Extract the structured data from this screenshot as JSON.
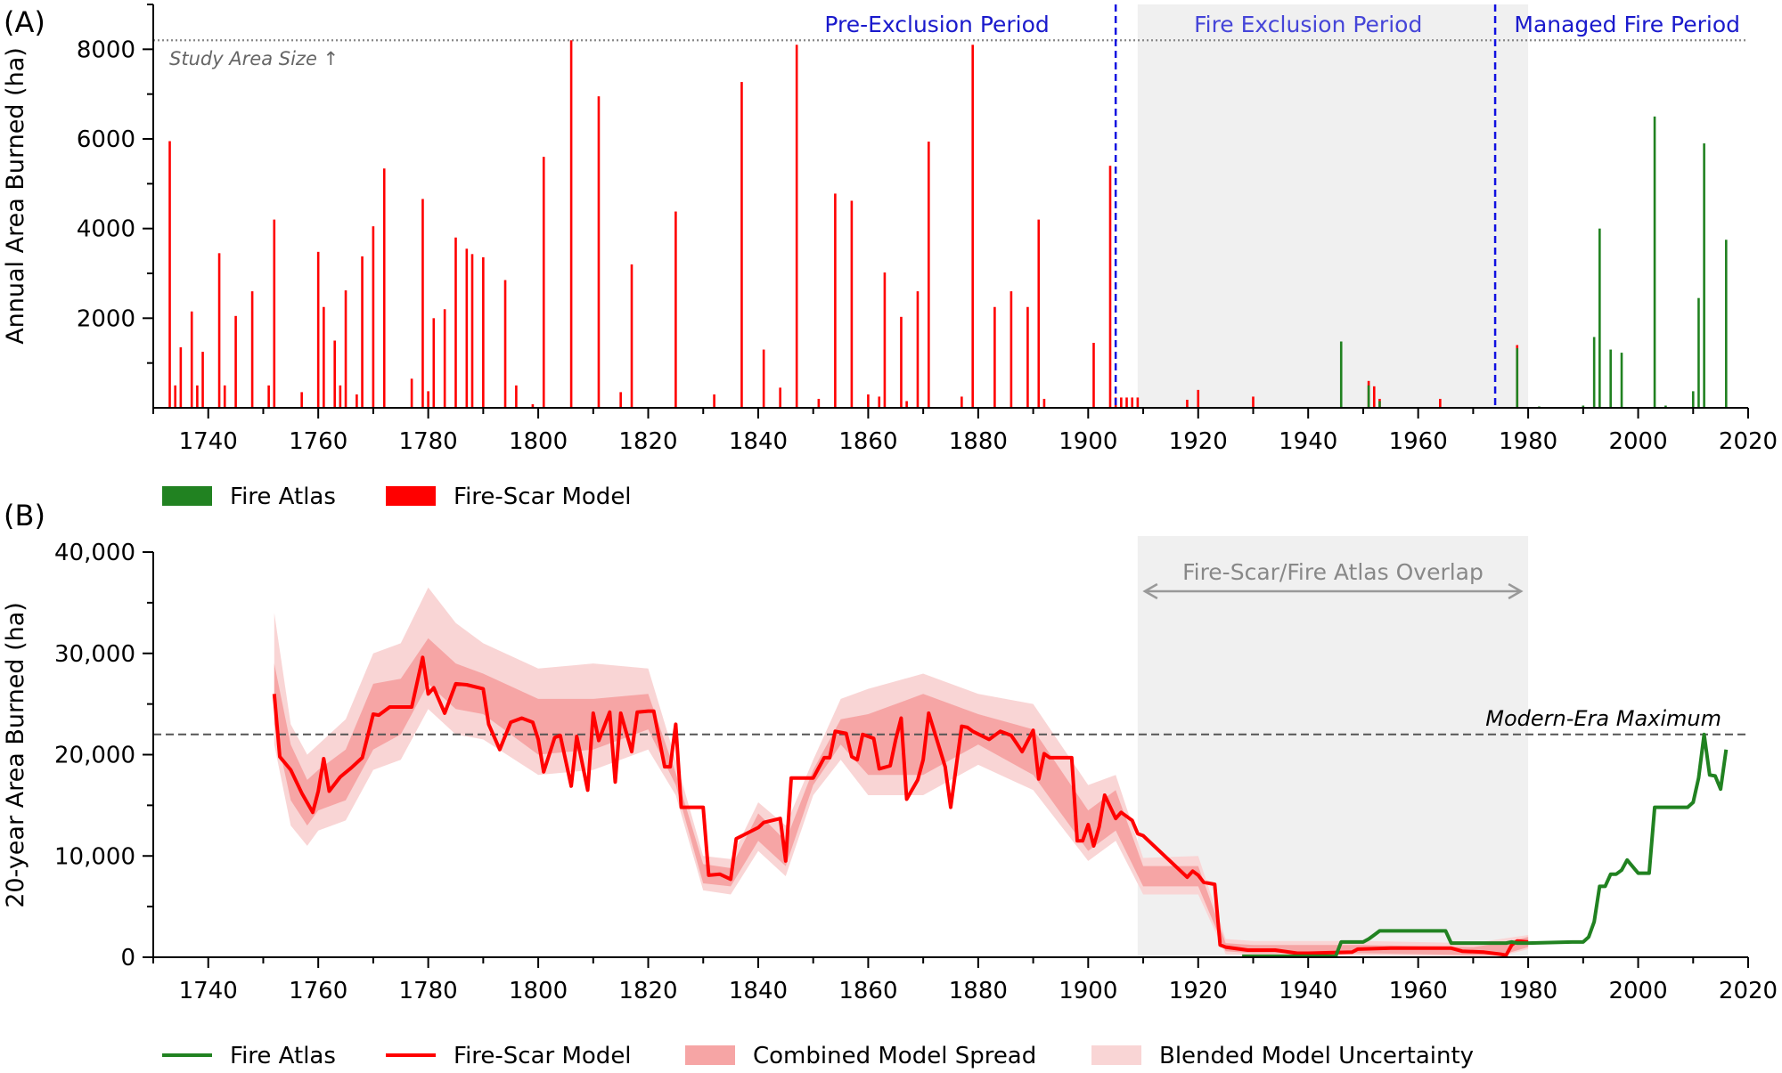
{
  "panels": {
    "a": {
      "label": "(A)",
      "ylabel": "Annual Area Burned (ha)",
      "yticks": [
        2000,
        4000,
        6000,
        8000
      ],
      "xticks": [
        1740,
        1760,
        1780,
        1800,
        1820,
        1840,
        1860,
        1880,
        1900,
        1920,
        1940,
        1960,
        1980,
        2000,
        2020
      ],
      "periods": [
        "Pre-Exclusion Period",
        "Fire Exclusion Period",
        "Managed Fire Period"
      ],
      "study_area_label": "Study Area Size ↑",
      "legend": [
        "Fire Atlas",
        "Fire-Scar Model"
      ]
    },
    "b": {
      "label": "(B)",
      "ylabel": "20-year Area Burned (ha)",
      "ytick_labels": [
        "0",
        "10,000",
        "20,000",
        "30,000",
        "40,000"
      ],
      "xticks": [
        1740,
        1760,
        1780,
        1800,
        1820,
        1840,
        1860,
        1880,
        1900,
        1920,
        1940,
        1960,
        1980,
        2000,
        2020
      ],
      "overlap_label": "Fire-Scar/Fire Atlas Overlap",
      "max_label": "Modern-Era Maximum",
      "legend": [
        "Fire Atlas",
        "Fire-Scar Model",
        "Combined Model Spread",
        "Blended Model Uncertainty"
      ]
    }
  },
  "colors": {
    "atlas": "#218221",
    "model": "#ff0000",
    "spread": "#f6a5a5",
    "uncertainty": "#f9d5d5",
    "shade": "#f0f0f0",
    "period_line": "#1010e0",
    "period_text": "#1a1acc",
    "period_text_mid": "#4545d8",
    "ref_line": "#555555"
  },
  "chart_data": [
    {
      "type": "bar",
      "title": "",
      "xlabel": "",
      "ylabel": "Annual Area Burned (ha)",
      "xlim": [
        1730,
        2020
      ],
      "ylim": [
        0,
        9000
      ],
      "study_area_size": 8200,
      "period_boundaries": [
        1905,
        1974
      ],
      "shaded_range": [
        1909,
        1980
      ],
      "series": [
        {
          "name": "Fire-Scar Model",
          "x": [
            1733,
            1734,
            1735,
            1737,
            1738,
            1739,
            1742,
            1743,
            1745,
            1748,
            1751,
            1752,
            1757,
            1760,
            1761,
            1763,
            1764,
            1765,
            1767,
            1768,
            1770,
            1772,
            1777,
            1779,
            1780,
            1781,
            1783,
            1785,
            1787,
            1788,
            1790,
            1794,
            1796,
            1799,
            1801,
            1806,
            1811,
            1815,
            1817,
            1825,
            1832,
            1837,
            1841,
            1844,
            1847,
            1851,
            1854,
            1857,
            1860,
            1862,
            1863,
            1866,
            1867,
            1869,
            1871,
            1877,
            1879,
            1883,
            1886,
            1889,
            1891,
            1892,
            1901,
            1904,
            1905,
            1906,
            1907,
            1908,
            1909,
            1918,
            1920,
            1930,
            1951,
            1952,
            1953,
            1964,
            1978
          ],
          "values": [
            5950,
            500,
            1350,
            2150,
            500,
            1250,
            3450,
            500,
            2050,
            2600,
            500,
            4200,
            350,
            3480,
            2250,
            1500,
            500,
            2620,
            300,
            3380,
            4050,
            5340,
            650,
            4660,
            370,
            2000,
            2200,
            3800,
            3550,
            3430,
            3360,
            2850,
            500,
            80,
            5600,
            8200,
            6950,
            350,
            3200,
            4380,
            300,
            7270,
            1300,
            450,
            8100,
            200,
            4780,
            4620,
            300,
            250,
            3020,
            2030,
            150,
            2600,
            5940,
            250,
            8100,
            2250,
            2600,
            2250,
            4200,
            200,
            1450,
            5400,
            230,
            230,
            230,
            230,
            230,
            180,
            400,
            250,
            600,
            480,
            200,
            200,
            1400
          ]
        },
        {
          "name": "Fire Atlas",
          "x": [
            1946,
            1951,
            1953,
            1978,
            1982,
            1990,
            1992,
            1993,
            1995,
            1997,
            2003,
            2005,
            2010,
            2011,
            2012,
            2016
          ],
          "values": [
            1480,
            500,
            150,
            1330,
            30,
            50,
            1580,
            4000,
            1300,
            1230,
            6500,
            50,
            370,
            2450,
            5900,
            3750
          ]
        }
      ]
    },
    {
      "type": "line",
      "title": "",
      "xlabel": "",
      "ylabel": "20-year Area Burned (ha)",
      "xlim": [
        1730,
        2020
      ],
      "ylim": [
        0,
        40000
      ],
      "modern_era_maximum": 22000,
      "shaded_range": [
        1909,
        1980
      ],
      "series": [
        {
          "name": "Fire-Scar Model",
          "x": [
            1752,
            1753,
            1755,
            1757,
            1759,
            1760,
            1761,
            1762,
            1764,
            1766,
            1768,
            1770,
            1771,
            1773,
            1775,
            1777,
            1779,
            1780,
            1781,
            1783,
            1785,
            1787,
            1790,
            1791,
            1793,
            1795,
            1797,
            1799,
            1800,
            1801,
            1803,
            1804,
            1806,
            1807,
            1809,
            1810,
            1811,
            1813,
            1814,
            1815,
            1817,
            1818,
            1820,
            1821,
            1823,
            1824,
            1825,
            1826,
            1830,
            1831,
            1833,
            1835,
            1836,
            1840,
            1841,
            1844,
            1845,
            1846,
            1850,
            1852,
            1853,
            1854,
            1856,
            1857,
            1858,
            1859,
            1861,
            1862,
            1864,
            1865,
            1866,
            1867,
            1869,
            1870,
            1871,
            1874,
            1875,
            1877,
            1878,
            1879,
            1882,
            1884,
            1886,
            1888,
            1890,
            1891,
            1892,
            1893,
            1897,
            1898,
            1899,
            1900,
            1901,
            1902,
            1903,
            1905,
            1906,
            1908,
            1909,
            1910,
            1918,
            1919,
            1920,
            1921,
            1923,
            1924,
            1925,
            1929,
            1934,
            1938,
            1939,
            1940,
            1948,
            1949,
            1955,
            1966,
            1968,
            1972,
            1975,
            1976,
            1977,
            1978,
            1980
          ],
          "values": [
            26000,
            19800,
            18500,
            16200,
            14300,
            16400,
            19600,
            16400,
            17800,
            18700,
            19700,
            24000,
            23900,
            24700,
            24700,
            24700,
            29600,
            26000,
            26600,
            24100,
            27000,
            26900,
            26500,
            23000,
            20500,
            23200,
            23600,
            23200,
            21500,
            18300,
            21700,
            21900,
            16900,
            21800,
            16500,
            24100,
            21400,
            24200,
            17300,
            24100,
            20300,
            24200,
            24300,
            24300,
            18800,
            18800,
            23000,
            14800,
            14800,
            8100,
            8200,
            7700,
            11700,
            12800,
            13300,
            13700,
            9500,
            17700,
            17700,
            19700,
            19700,
            22300,
            22100,
            19800,
            19500,
            22000,
            21600,
            18600,
            18900,
            21500,
            23600,
            15600,
            17500,
            19500,
            24100,
            18800,
            14800,
            22800,
            22700,
            22300,
            21500,
            22300,
            21900,
            20300,
            22400,
            17600,
            20100,
            19700,
            19700,
            11500,
            11500,
            13100,
            11000,
            12900,
            16000,
            13700,
            14300,
            13500,
            12200,
            12000,
            7900,
            8500,
            8100,
            7400,
            7200,
            1200,
            1000,
            700,
            700,
            400,
            400,
            400,
            500,
            800,
            900,
            900,
            600,
            500,
            300,
            200,
            1200,
            1600,
            1500
          ]
        },
        {
          "name": "Fire Atlas",
          "x": [
            1928,
            1945,
            1946,
            1950,
            1951,
            1952,
            1953,
            1965,
            1966,
            1976,
            1977,
            1978,
            1980,
            1988,
            1989,
            1990,
            1991,
            1992,
            1993,
            1994,
            1995,
            1996,
            1997,
            1998,
            2000,
            2002,
            2003,
            2005,
            2009,
            2010,
            2011,
            2012,
            2013,
            2014,
            2015,
            2016
          ],
          "values": [
            100,
            100,
            1500,
            1500,
            1800,
            2200,
            2600,
            2600,
            1400,
            1400,
            1500,
            1400,
            1400,
            1500,
            1500,
            1500,
            2000,
            3500,
            7000,
            7000,
            8200,
            8200,
            8600,
            9600,
            8300,
            8300,
            14800,
            14800,
            14800,
            15300,
            17700,
            22000,
            18000,
            17900,
            16600,
            20500
          ]
        },
        {
          "name": "Combined Model Spread",
          "x": [
            1752,
            1755,
            1758,
            1760,
            1765,
            1770,
            1775,
            1780,
            1785,
            1790,
            1800,
            1810,
            1820,
            1825,
            1830,
            1835,
            1840,
            1845,
            1850,
            1855,
            1860,
            1870,
            1880,
            1890,
            1900,
            1905,
            1910,
            1920,
            1925,
            1930,
            1950,
            1970,
            1975,
            1980
          ],
          "lower": [
            23000,
            15500,
            13000,
            14500,
            15500,
            20500,
            22000,
            27000,
            24500,
            24000,
            20000,
            20500,
            22500,
            17000,
            7300,
            7000,
            11500,
            9000,
            17000,
            21000,
            18000,
            18000,
            21000,
            18000,
            10500,
            12500,
            7000,
            7000,
            600,
            400,
            400,
            200,
            200,
            1000
          ],
          "upper": [
            29000,
            21000,
            17500,
            18500,
            20500,
            27000,
            27500,
            31500,
            29000,
            28000,
            25500,
            25500,
            26000,
            18200,
            9200,
            8800,
            14200,
            11500,
            18500,
            23500,
            24000,
            26000,
            24000,
            22500,
            14500,
            16500,
            9000,
            9000,
            1400,
            1200,
            1200,
            1000,
            1400,
            2000
          ]
        },
        {
          "name": "Blended Model Uncertainty",
          "x": [
            1752,
            1755,
            1758,
            1760,
            1765,
            1770,
            1775,
            1780,
            1785,
            1790,
            1800,
            1810,
            1820,
            1825,
            1830,
            1835,
            1840,
            1845,
            1850,
            1855,
            1860,
            1870,
            1880,
            1890,
            1900,
            1905,
            1910,
            1920,
            1925,
            1930,
            1950,
            1970,
            1975,
            1980
          ],
          "lower": [
            21000,
            13000,
            11000,
            12500,
            13500,
            18500,
            19500,
            24500,
            22000,
            21500,
            18000,
            18500,
            20500,
            16000,
            6600,
            6200,
            10500,
            8000,
            16000,
            19500,
            16000,
            16000,
            19000,
            16500,
            9500,
            11500,
            6200,
            6200,
            300,
            200,
            200,
            100,
            100,
            800
          ],
          "upper": [
            34000,
            23000,
            20000,
            21000,
            23500,
            30000,
            31000,
            36500,
            33000,
            31000,
            28500,
            29000,
            28500,
            19500,
            10000,
            9700,
            15300,
            13000,
            19500,
            25500,
            26500,
            28000,
            26000,
            25000,
            17000,
            18000,
            9800,
            10000,
            1800,
            1600,
            1600,
            1400,
            1800,
            2200
          ]
        }
      ]
    }
  ]
}
